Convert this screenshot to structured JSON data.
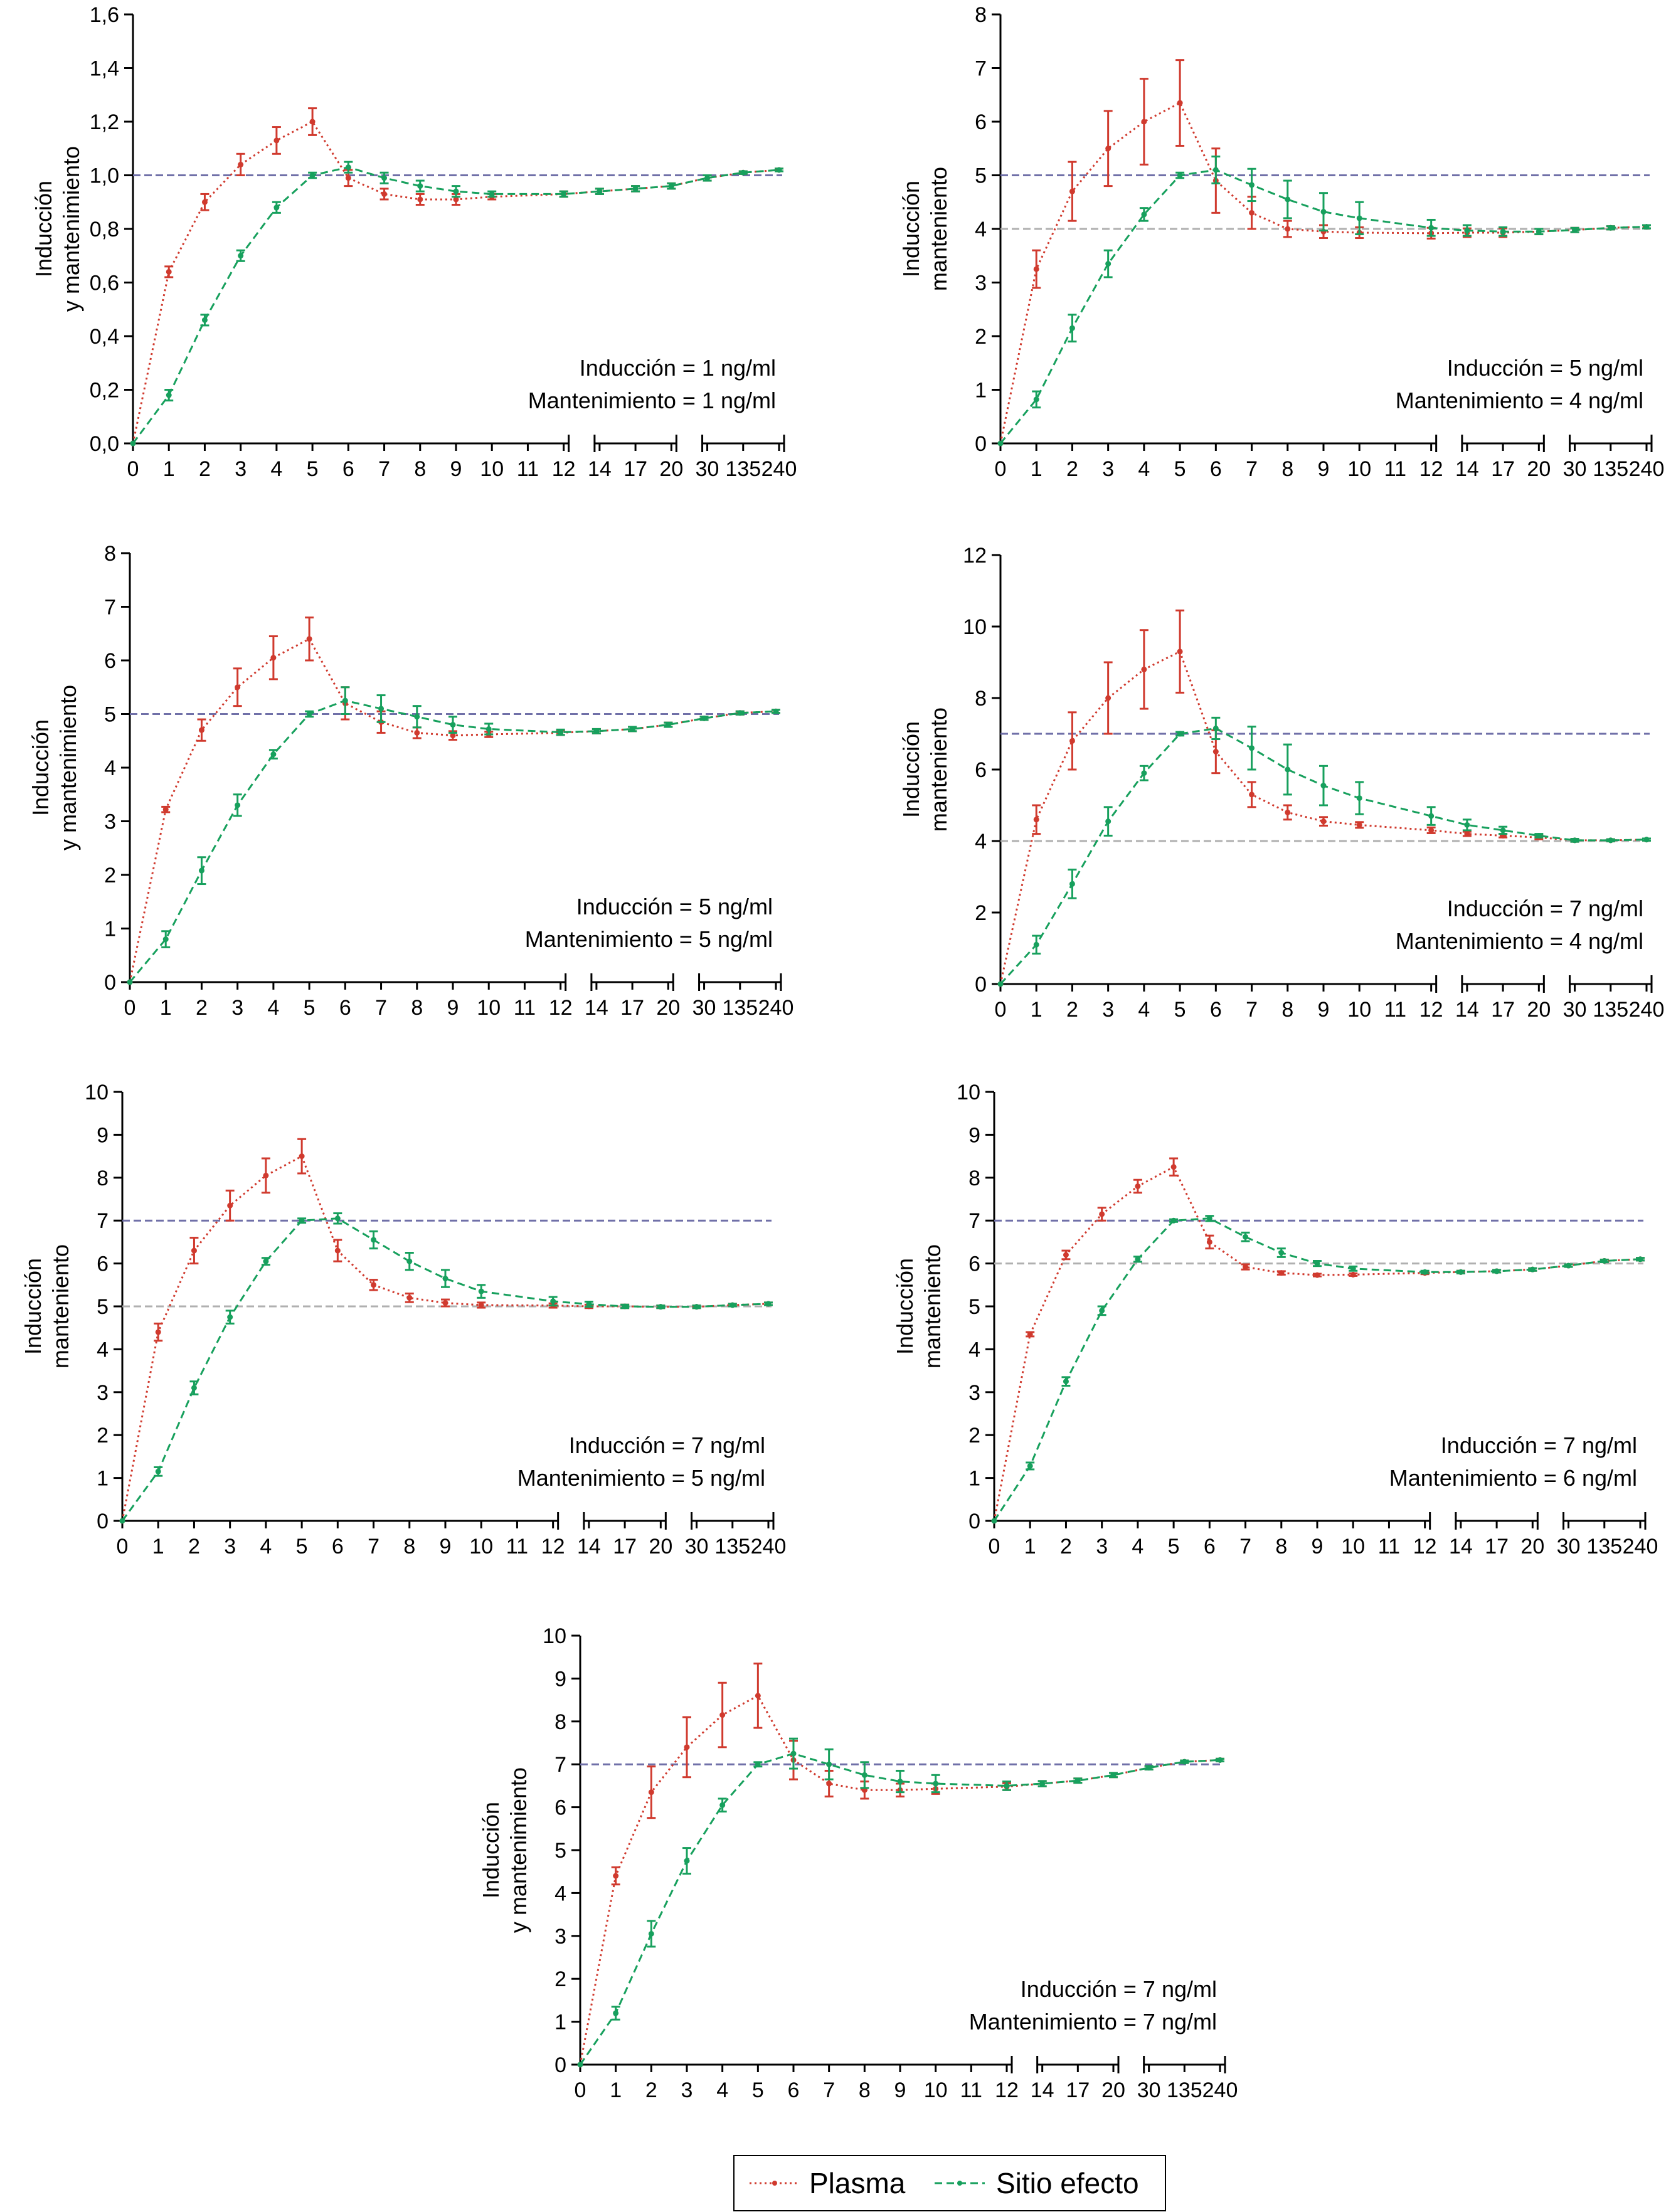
{
  "colors": {
    "plasma": "#d03a2e",
    "effect": "#17a05d",
    "target_high": "#7070a8",
    "target_low": "#b0b0b0",
    "axis": "#000000"
  },
  "legend": {
    "plasma_label": "Plasma",
    "effect_label": "Sitio efecto"
  },
  "chart_data": [
    {
      "type": "line",
      "id": "A",
      "ylabel_lines": [
        "Inducción",
        "y mantenimiento"
      ],
      "ylim": [
        0,
        1.6
      ],
      "yticks": [
        0,
        0.2,
        0.4,
        0.6,
        0.8,
        1.0,
        1.2,
        1.4,
        1.6
      ],
      "ytick_decimals": 1,
      "xtick_labels": [
        "0",
        "1",
        "2",
        "3",
        "4",
        "5",
        "6",
        "7",
        "8",
        "9",
        "10",
        "11",
        "12",
        "14",
        "17",
        "20",
        "30",
        "135",
        "240"
      ],
      "target_high": 1.0,
      "target_low": null,
      "annotation_lines": [
        "Inducción = 1 ng/ml",
        "Mantenimiento = 1 ng/ml"
      ],
      "series": [
        {
          "name": "Plasma",
          "values": [
            0,
            0.64,
            0.9,
            1.04,
            1.13,
            1.2,
            0.99,
            0.93,
            0.91,
            0.91,
            0.92,
            null,
            0.93,
            0.94,
            0.95,
            0.96,
            0.99,
            1.01,
            1.02
          ],
          "errors": [
            0,
            0.02,
            0.03,
            0.04,
            0.05,
            0.05,
            0.03,
            0.02,
            0.02,
            0.02,
            0.01,
            0,
            0.01,
            0.01,
            0.01,
            0.01,
            0.01,
            0.005,
            0.005
          ]
        },
        {
          "name": "Sitio efecto",
          "values": [
            0,
            0.18,
            0.46,
            0.7,
            0.88,
            1.0,
            1.03,
            0.99,
            0.96,
            0.94,
            0.93,
            null,
            0.93,
            0.94,
            0.95,
            0.96,
            0.99,
            1.01,
            1.02
          ],
          "errors": [
            0,
            0.02,
            0.02,
            0.02,
            0.02,
            0.01,
            0.02,
            0.02,
            0.02,
            0.02,
            0.01,
            0,
            0.01,
            0.01,
            0.01,
            0.01,
            0.01,
            0.005,
            0.005
          ]
        }
      ]
    },
    {
      "type": "line",
      "id": "B",
      "ylabel_lines": [
        "Inducción",
        "manteniento"
      ],
      "ylim": [
        0,
        8
      ],
      "yticks": [
        0,
        1,
        2,
        3,
        4,
        5,
        6,
        7,
        8
      ],
      "ytick_decimals": 0,
      "xtick_labels": [
        "0",
        "1",
        "2",
        "3",
        "4",
        "5",
        "6",
        "7",
        "8",
        "9",
        "10",
        "11",
        "12",
        "14",
        "17",
        "20",
        "30",
        "135",
        "240"
      ],
      "target_high": 5,
      "target_low": 4,
      "annotation_lines": [
        "Inducción = 5 ng/ml",
        "Mantenimiento = 4 ng/ml"
      ],
      "series": [
        {
          "name": "Plasma",
          "values": [
            0,
            3.25,
            4.7,
            5.5,
            6.0,
            6.35,
            4.9,
            4.3,
            4.0,
            3.95,
            3.93,
            null,
            3.92,
            3.93,
            3.93,
            3.95,
            3.98,
            4.02,
            4.04
          ],
          "errors": [
            0,
            0.35,
            0.55,
            0.7,
            0.8,
            0.8,
            0.6,
            0.3,
            0.15,
            0.12,
            0.1,
            0,
            0.1,
            0.08,
            0.08,
            0.05,
            0.04,
            0.03,
            0.03
          ]
        },
        {
          "name": "Sitio efecto",
          "values": [
            0,
            0.82,
            2.15,
            3.35,
            4.27,
            5.0,
            5.1,
            4.82,
            4.55,
            4.32,
            4.2,
            null,
            4.02,
            3.97,
            3.95,
            3.95,
            3.98,
            4.02,
            4.04
          ],
          "errors": [
            0,
            0.15,
            0.25,
            0.25,
            0.12,
            0.05,
            0.25,
            0.3,
            0.35,
            0.35,
            0.3,
            0,
            0.15,
            0.1,
            0.08,
            0.05,
            0.04,
            0.03,
            0.03
          ]
        }
      ]
    },
    {
      "type": "line",
      "id": "C",
      "ylabel_lines": [
        "Inducción",
        "y mantenimiento"
      ],
      "ylim": [
        0,
        8
      ],
      "yticks": [
        0,
        1,
        2,
        3,
        4,
        5,
        6,
        7,
        8
      ],
      "ytick_decimals": 0,
      "xtick_labels": [
        "0",
        "1",
        "2",
        "3",
        "4",
        "5",
        "6",
        "7",
        "8",
        "9",
        "10",
        "11",
        "12",
        "14",
        "17",
        "20",
        "30",
        "135",
        "240"
      ],
      "target_high": 5,
      "target_low": null,
      "annotation_lines": [
        "Inducción = 5 ng/ml",
        "Mantenimiento = 5 ng/ml"
      ],
      "series": [
        {
          "name": "Plasma",
          "values": [
            0,
            3.22,
            4.7,
            5.5,
            6.05,
            6.4,
            5.2,
            4.85,
            4.65,
            4.6,
            4.62,
            null,
            4.65,
            4.68,
            4.72,
            4.8,
            4.92,
            5.02,
            5.05
          ],
          "errors": [
            0,
            0.05,
            0.2,
            0.35,
            0.4,
            0.4,
            0.3,
            0.2,
            0.1,
            0.08,
            0.05,
            0,
            0.04,
            0.04,
            0.04,
            0.04,
            0.03,
            0.03,
            0.03
          ]
        },
        {
          "name": "Sitio efecto",
          "values": [
            0,
            0.8,
            2.08,
            3.3,
            4.25,
            5.0,
            5.25,
            5.1,
            4.95,
            4.8,
            4.72,
            null,
            4.66,
            4.68,
            4.72,
            4.8,
            4.92,
            5.02,
            5.05
          ],
          "errors": [
            0,
            0.15,
            0.25,
            0.2,
            0.08,
            0.05,
            0.25,
            0.25,
            0.2,
            0.15,
            0.1,
            0,
            0.05,
            0.04,
            0.04,
            0.04,
            0.03,
            0.03,
            0.03
          ]
        }
      ]
    },
    {
      "type": "line",
      "id": "D",
      "ylabel_lines": [
        "Inducción",
        "manteniento"
      ],
      "ylim": [
        0,
        12
      ],
      "yticks": [
        0,
        2,
        4,
        6,
        8,
        10,
        12
      ],
      "ytick_decimals": 0,
      "xtick_labels": [
        "0",
        "1",
        "2",
        "3",
        "4",
        "5",
        "6",
        "7",
        "8",
        "9",
        "10",
        "11",
        "12",
        "14",
        "17",
        "20",
        "30",
        "135",
        "240"
      ],
      "target_high": 7,
      "target_low": 4,
      "annotation_lines": [
        "Inducción = 7 ng/ml",
        "Mantenimiento = 4 ng/ml"
      ],
      "series": [
        {
          "name": "Plasma",
          "values": [
            0,
            4.6,
            6.8,
            8.0,
            8.8,
            9.3,
            6.5,
            5.3,
            4.8,
            4.55,
            4.45,
            null,
            4.3,
            4.2,
            4.15,
            4.1,
            4.02,
            4.02,
            4.04
          ],
          "errors": [
            0,
            0.4,
            0.8,
            1.0,
            1.1,
            1.15,
            0.6,
            0.35,
            0.2,
            0.12,
            0.08,
            0,
            0.08,
            0.06,
            0.05,
            0.05,
            0.04,
            0.03,
            0.03
          ]
        },
        {
          "name": "Sitio efecto",
          "values": [
            0,
            1.1,
            2.8,
            4.55,
            5.9,
            7.0,
            7.15,
            6.6,
            6.0,
            5.55,
            5.2,
            null,
            4.7,
            4.45,
            4.3,
            4.15,
            4.02,
            4.02,
            4.04
          ],
          "errors": [
            0,
            0.25,
            0.4,
            0.4,
            0.2,
            0.05,
            0.3,
            0.6,
            0.7,
            0.55,
            0.45,
            0,
            0.25,
            0.15,
            0.1,
            0.05,
            0.04,
            0.03,
            0.03
          ]
        }
      ]
    },
    {
      "type": "line",
      "id": "E",
      "ylabel_lines": [
        "Inducción",
        "manteniento"
      ],
      "ylim": [
        0,
        10
      ],
      "yticks": [
        0,
        1,
        2,
        3,
        4,
        5,
        6,
        7,
        8,
        9,
        10
      ],
      "ytick_decimals": 0,
      "xtick_labels": [
        "0",
        "1",
        "2",
        "3",
        "4",
        "5",
        "6",
        "7",
        "8",
        "9",
        "10",
        "11",
        "12",
        "14",
        "17",
        "20",
        "30",
        "135",
        "240"
      ],
      "target_high": 7,
      "target_low": 5,
      "annotation_lines": [
        "Inducción = 7 ng/ml",
        "Mantenimiento = 5 ng/ml"
      ],
      "series": [
        {
          "name": "Plasma",
          "values": [
            0,
            4.4,
            6.3,
            7.35,
            8.05,
            8.5,
            6.3,
            5.5,
            5.2,
            5.08,
            5.03,
            null,
            5.02,
            5.0,
            5.0,
            4.99,
            4.99,
            5.03,
            5.06
          ],
          "errors": [
            0,
            0.2,
            0.3,
            0.35,
            0.4,
            0.4,
            0.25,
            0.12,
            0.1,
            0.08,
            0.06,
            0,
            0.05,
            0.04,
            0.04,
            0.03,
            0.03,
            0.03,
            0.03
          ]
        },
        {
          "name": "Sitio efecto",
          "values": [
            0,
            1.15,
            3.1,
            4.75,
            6.05,
            7.0,
            7.05,
            6.55,
            6.05,
            5.65,
            5.35,
            null,
            5.12,
            5.05,
            5.0,
            4.99,
            4.99,
            5.03,
            5.06
          ],
          "errors": [
            0,
            0.1,
            0.15,
            0.15,
            0.08,
            0.05,
            0.12,
            0.2,
            0.2,
            0.2,
            0.15,
            0,
            0.1,
            0.06,
            0.04,
            0.03,
            0.03,
            0.03,
            0.03
          ]
        }
      ]
    },
    {
      "type": "line",
      "id": "F",
      "ylabel_lines": [
        "Inducción",
        "manteniento"
      ],
      "ylim": [
        0,
        10
      ],
      "yticks": [
        0,
        1,
        2,
        3,
        4,
        5,
        6,
        7,
        8,
        9,
        10
      ],
      "ytick_decimals": 0,
      "xtick_labels": [
        "0",
        "1",
        "2",
        "3",
        "4",
        "5",
        "6",
        "7",
        "8",
        "9",
        "10",
        "11",
        "12",
        "14",
        "17",
        "20",
        "30",
        "135",
        "240"
      ],
      "target_high": 7,
      "target_low": 6,
      "annotation_lines": [
        "Inducción = 7 ng/ml",
        "Mantenimiento = 6 ng/ml"
      ],
      "series": [
        {
          "name": "Plasma",
          "values": [
            0,
            4.35,
            6.2,
            7.15,
            7.8,
            8.25,
            6.5,
            5.92,
            5.78,
            5.73,
            5.74,
            null,
            5.78,
            5.8,
            5.82,
            5.86,
            5.95,
            6.06,
            6.1
          ],
          "errors": [
            0,
            0.05,
            0.1,
            0.15,
            0.15,
            0.2,
            0.15,
            0.06,
            0.04,
            0.03,
            0.03,
            0,
            0.03,
            0.03,
            0.03,
            0.03,
            0.03,
            0.03,
            0.03
          ]
        },
        {
          "name": "Sitio efecto",
          "values": [
            0,
            1.28,
            3.25,
            4.9,
            6.1,
            7.0,
            7.05,
            6.62,
            6.25,
            6.0,
            5.88,
            null,
            5.8,
            5.8,
            5.82,
            5.86,
            5.95,
            6.06,
            6.1
          ],
          "errors": [
            0,
            0.08,
            0.1,
            0.1,
            0.06,
            0.03,
            0.06,
            0.1,
            0.1,
            0.06,
            0.05,
            0,
            0.03,
            0.03,
            0.03,
            0.03,
            0.03,
            0.03,
            0.03
          ]
        }
      ]
    },
    {
      "type": "line",
      "id": "G",
      "ylabel_lines": [
        "Inducción",
        "y mantenimiento"
      ],
      "ylim": [
        0,
        10
      ],
      "yticks": [
        0,
        1,
        2,
        3,
        4,
        5,
        6,
        7,
        8,
        9,
        10
      ],
      "ytick_decimals": 0,
      "xtick_labels": [
        "0",
        "1",
        "2",
        "3",
        "4",
        "5",
        "6",
        "7",
        "8",
        "9",
        "10",
        "11",
        "12",
        "14",
        "17",
        "20",
        "30",
        "135",
        "240"
      ],
      "target_high": 7,
      "target_low": null,
      "annotation_lines": [
        "Inducción = 7 ng/ml",
        "Mantenimiento = 7 ng/ml"
      ],
      "series": [
        {
          "name": "Plasma",
          "values": [
            0,
            4.4,
            6.35,
            7.4,
            8.15,
            8.6,
            7.1,
            6.55,
            6.4,
            6.4,
            6.43,
            null,
            6.48,
            6.55,
            6.62,
            6.75,
            6.92,
            7.06,
            7.1
          ],
          "errors": [
            0,
            0.2,
            0.6,
            0.7,
            0.75,
            0.75,
            0.45,
            0.3,
            0.2,
            0.15,
            0.12,
            0,
            0.08,
            0.06,
            0.05,
            0.05,
            0.04,
            0.03,
            0.03
          ]
        },
        {
          "name": "Sitio efecto",
          "values": [
            0,
            1.2,
            3.05,
            4.75,
            6.05,
            7.0,
            7.25,
            7.0,
            6.75,
            6.6,
            6.55,
            null,
            6.5,
            6.55,
            6.62,
            6.75,
            6.92,
            7.06,
            7.1
          ],
          "errors": [
            0,
            0.15,
            0.3,
            0.3,
            0.15,
            0.05,
            0.35,
            0.35,
            0.3,
            0.25,
            0.2,
            0,
            0.1,
            0.06,
            0.05,
            0.05,
            0.04,
            0.03,
            0.03
          ]
        }
      ]
    }
  ]
}
